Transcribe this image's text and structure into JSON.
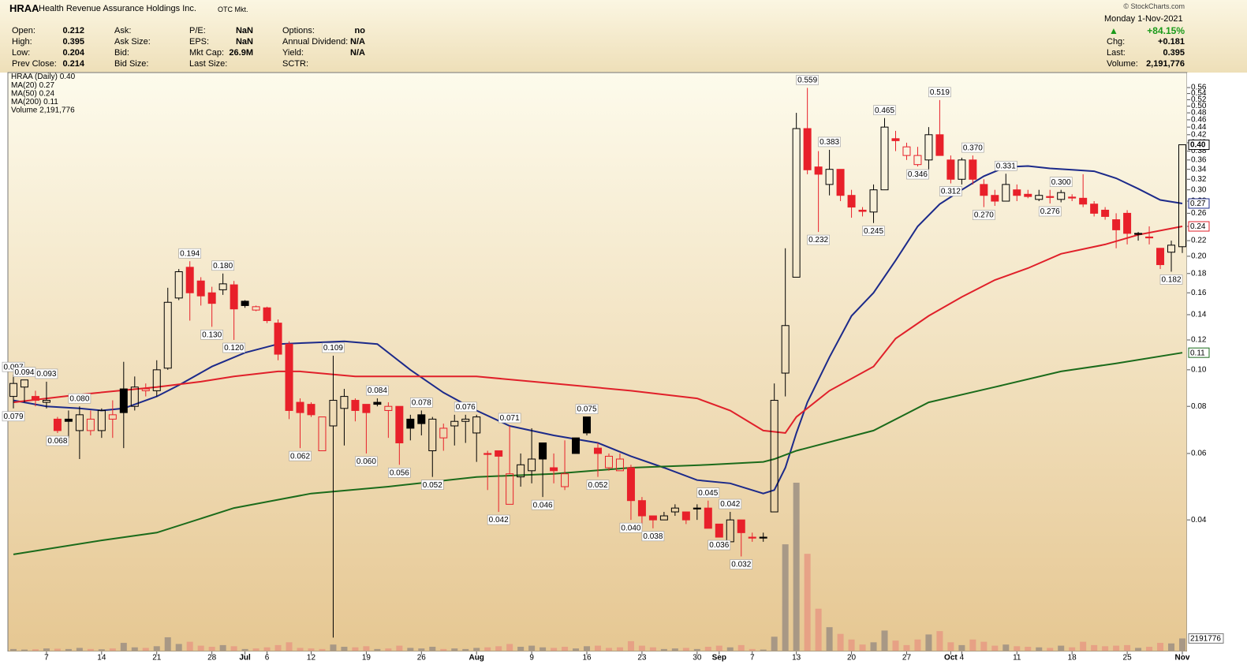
{
  "header": {
    "symbol": "HRAA",
    "company": "Health Revenue Assurance Holdings Inc.",
    "exchange": "OTC Mkt.",
    "copyright": "© StockCharts.com",
    "columns": [
      [
        [
          "Open:",
          "0.212"
        ],
        [
          "High:",
          "0.395"
        ],
        [
          "Low:",
          "0.204"
        ],
        [
          "Prev Close:",
          "0.214"
        ]
      ],
      [
        [
          "Ask:"
        ],
        [
          "Ask Size:"
        ],
        [
          "Bid:"
        ],
        [
          "Bid Size:"
        ]
      ],
      [
        [
          "P/E:",
          "NaN"
        ],
        [
          "EPS:",
          "NaN"
        ],
        [
          "Mkt Cap:",
          "26.9M"
        ],
        [
          "Last Size:"
        ]
      ],
      [
        [
          "Options:",
          "no"
        ],
        [
          "Annual Dividend:",
          "N/A"
        ],
        [
          "Yield:",
          "N/A"
        ],
        [
          "SCTR:"
        ]
      ]
    ],
    "date": "Monday  1-Nov-2021",
    "change_pct": "+84.15%",
    "right_rows": [
      [
        "Chg:",
        "+0.181"
      ],
      [
        "Last:",
        "0.395"
      ],
      [
        "Volume:",
        "2,191,776"
      ]
    ]
  },
  "chart_data": {
    "type": "candlestick",
    "price_legend": "HRAA (Daily)",
    "price_last": "0.40",
    "price_color": "#000000",
    "down_color": "#e8202a",
    "volume_legend": "Volume",
    "volume_last": "2,191,776",
    "ylim": [
      0.018,
      0.605
    ],
    "log_scale": true,
    "yticks": [
      0.04,
      0.06,
      0.08,
      {
        "value": 0.1,
        "label": "0.10"
      },
      0.12,
      0.14,
      0.16,
      0.18,
      {
        "value": 0.2,
        "label": "0.20"
      },
      0.22,
      0.24,
      0.26,
      0.28,
      {
        "value": 0.3,
        "label": "0.30"
      },
      0.32,
      0.34,
      0.36,
      0.38,
      {
        "value": 0.4,
        "label": "0.40"
      },
      0.42,
      0.44,
      0.46,
      0.48,
      {
        "value": 0.5,
        "label": "0.50"
      },
      0.52,
      0.54,
      0.56
    ],
    "volume_ylim": [
      0,
      30000000
    ],
    "categories": [
      null,
      null,
      null,
      "7",
      null,
      null,
      null,
      null,
      "14",
      null,
      null,
      null,
      null,
      "21",
      null,
      null,
      null,
      null,
      "28",
      null,
      null,
      "Jul",
      null,
      "6",
      null,
      null,
      null,
      "12",
      null,
      null,
      null,
      null,
      "19",
      null,
      null,
      null,
      null,
      "26",
      null,
      null,
      null,
      null,
      "Aug",
      null,
      null,
      null,
      null,
      "9",
      null,
      null,
      null,
      null,
      "16",
      null,
      null,
      null,
      null,
      "23",
      null,
      null,
      null,
      null,
      "30",
      null,
      "Sep",
      null,
      null,
      "7",
      null,
      null,
      null,
      "13",
      null,
      null,
      null,
      null,
      "20",
      null,
      null,
      null,
      null,
      "27",
      null,
      null,
      null,
      "Oct",
      "4",
      null,
      null,
      null,
      null,
      "11",
      null,
      null,
      null,
      null,
      "18",
      null,
      null,
      null,
      null,
      "25",
      null,
      null,
      null,
      null,
      "Nov"
    ],
    "open": [
      0.085,
      0.09,
      0.085,
      0.082,
      0.074,
      0.074,
      0.069,
      0.069,
      0.069,
      0.074,
      0.089,
      0.08,
      0.088,
      0.088,
      0.101,
      0.155,
      0.187,
      0.172,
      0.16,
      0.163,
      0.168,
      0.152,
      0.144,
      0.146,
      0.133,
      0.117,
      0.082,
      0.081,
      0.061,
      0.071,
      0.079,
      0.083,
      0.081,
      0.082,
      0.078,
      0.08,
      0.074,
      0.076,
      0.061,
      0.066,
      0.071,
      0.073,
      0.068,
      0.06,
      0.061,
      0.044,
      0.052,
      0.054,
      0.064,
      0.055,
      0.049,
      0.066,
      0.075,
      0.062,
      0.055,
      0.054,
      0.055,
      0.045,
      0.041,
      0.04,
      0.042,
      0.042,
      0.043,
      0.043,
      0.039,
      0.035,
      0.04,
      0.036,
      0.036,
      0.042,
      0.098,
      0.176,
      0.436,
      0.345,
      0.31,
      0.34,
      0.29,
      0.265,
      0.262,
      0.3,
      0.41,
      0.37,
      0.35,
      0.36,
      0.42,
      0.36,
      0.32,
      0.36,
      0.31,
      0.29,
      0.28,
      0.3,
      0.292,
      0.283,
      0.288,
      0.283,
      0.287,
      0.285,
      0.275,
      0.265,
      0.25,
      0.26,
      0.23,
      0.225,
      0.21,
      0.205,
      0.212
    ],
    "high": [
      0.097,
      0.094,
      0.088,
      0.093,
      0.075,
      0.078,
      0.08,
      0.078,
      0.079,
      0.083,
      0.105,
      0.096,
      0.092,
      0.106,
      0.165,
      0.185,
      0.194,
      0.176,
      0.166,
      0.18,
      0.172,
      0.153,
      0.148,
      0.147,
      0.136,
      0.119,
      0.084,
      0.082,
      0.075,
      0.109,
      0.089,
      0.084,
      0.081,
      0.084,
      0.082,
      0.08,
      0.076,
      0.078,
      0.075,
      0.072,
      0.076,
      0.076,
      0.076,
      0.061,
      0.061,
      0.071,
      0.06,
      0.07,
      0.064,
      0.06,
      0.065,
      0.066,
      0.075,
      0.064,
      0.06,
      0.06,
      0.056,
      0.046,
      0.041,
      0.042,
      0.044,
      0.042,
      0.044,
      0.045,
      0.039,
      0.042,
      0.04,
      0.037,
      0.037,
      0.092,
      0.21,
      0.48,
      0.559,
      0.38,
      0.383,
      0.34,
      0.3,
      0.27,
      0.31,
      0.465,
      0.43,
      0.4,
      0.39,
      0.44,
      0.519,
      0.37,
      0.365,
      0.37,
      0.32,
      0.3,
      0.331,
      0.31,
      0.3,
      0.3,
      0.3,
      0.3,
      0.292,
      0.33,
      0.28,
      0.27,
      0.26,
      0.265,
      0.232,
      0.24,
      0.21,
      0.22,
      0.395
    ],
    "low": [
      0.079,
      0.082,
      0.08,
      0.079,
      0.068,
      0.066,
      0.058,
      0.067,
      0.066,
      0.066,
      0.062,
      0.078,
      0.085,
      0.085,
      0.1,
      0.153,
      0.135,
      0.148,
      0.13,
      0.158,
      0.12,
      0.146,
      0.143,
      0.133,
      0.106,
      0.074,
      0.062,
      0.075,
      0.061,
      0.0195,
      0.063,
      0.073,
      0.06,
      0.08,
      0.066,
      0.056,
      0.065,
      0.067,
      0.052,
      0.061,
      0.063,
      0.064,
      0.057,
      0.048,
      0.042,
      0.044,
      0.049,
      0.05,
      0.046,
      0.05,
      0.048,
      0.06,
      0.067,
      0.052,
      0.054,
      0.054,
      0.04,
      0.039,
      0.038,
      0.04,
      0.041,
      0.039,
      0.04,
      0.038,
      0.036,
      0.035,
      0.032,
      0.035,
      0.035,
      0.042,
      0.085,
      0.176,
      0.33,
      0.232,
      0.29,
      0.28,
      0.253,
      0.255,
      0.245,
      0.3,
      0.38,
      0.36,
      0.346,
      0.34,
      0.37,
      0.312,
      0.31,
      0.31,
      0.27,
      0.272,
      0.28,
      0.28,
      0.285,
      0.28,
      0.276,
      0.278,
      0.28,
      0.27,
      0.255,
      0.25,
      0.21,
      0.215,
      0.22,
      0.215,
      0.185,
      0.182,
      0.204
    ],
    "close": [
      0.092,
      0.094,
      0.083,
      0.083,
      0.069,
      0.073,
      0.076,
      0.074,
      0.078,
      0.076,
      0.077,
      0.09,
      0.089,
      0.1,
      0.151,
      0.182,
      0.16,
      0.157,
      0.15,
      0.169,
      0.145,
      0.148,
      0.147,
      0.135,
      0.11,
      0.078,
      0.077,
      0.076,
      0.075,
      0.083,
      0.085,
      0.078,
      0.077,
      0.081,
      0.08,
      0.064,
      0.07,
      0.072,
      0.074,
      0.07,
      0.073,
      0.074,
      0.075,
      0.06,
      0.059,
      0.053,
      0.056,
      0.058,
      0.058,
      0.054,
      0.053,
      0.06,
      0.068,
      0.06,
      0.059,
      0.058,
      0.045,
      0.041,
      0.04,
      0.041,
      0.043,
      0.04,
      0.043,
      0.038,
      0.036,
      0.04,
      0.037,
      0.036,
      0.036,
      0.083,
      0.131,
      0.436,
      0.339,
      0.33,
      0.34,
      0.29,
      0.27,
      0.263,
      0.3,
      0.44,
      0.405,
      0.39,
      0.37,
      0.42,
      0.37,
      0.32,
      0.36,
      0.32,
      0.29,
      0.28,
      0.31,
      0.29,
      0.288,
      0.29,
      0.288,
      0.295,
      0.287,
      0.275,
      0.26,
      0.255,
      0.235,
      0.23,
      0.23,
      0.224,
      0.19,
      0.214,
      0.395
    ],
    "volume": [
      300000,
      200000,
      250000,
      400000,
      350000,
      300000,
      500000,
      300000,
      250000,
      400000,
      1400000,
      600000,
      500000,
      800000,
      2400000,
      1200000,
      1600000,
      900000,
      700000,
      1000000,
      800000,
      300000,
      400000,
      600000,
      1000000,
      1500000,
      500000,
      400000,
      300000,
      1100000,
      700000,
      600000,
      800000,
      300000,
      400000,
      900000,
      500000,
      400000,
      700000,
      300000,
      400000,
      300000,
      500000,
      600000,
      800000,
      1200000,
      700000,
      900000,
      600000,
      500000,
      700000,
      400000,
      800000,
      900000,
      500000,
      600000,
      1700000,
      900000,
      600000,
      300000,
      400000,
      500000,
      300000,
      700000,
      900000,
      600000,
      1000000,
      300000,
      200000,
      2500000,
      19000000,
      30000000,
      17300000,
      7500000,
      4200000,
      3000000,
      2000000,
      1100000,
      1500000,
      3600000,
      1800000,
      1000000,
      2000000,
      2900000,
      3500000,
      1500000,
      1000000,
      2000000,
      1600000,
      900000,
      1100000,
      800000,
      700000,
      600000,
      500000,
      900000,
      600000,
      1600000,
      1000000,
      800000,
      900000,
      1000000,
      500000,
      700000,
      1400000,
      1300000,
      2191776
    ],
    "ma": [
      {
        "name": "MA(20)",
        "last": "0.27",
        "color": "#1c2a8a",
        "x": [
          0,
          3,
          6,
          8,
          10,
          13,
          15,
          18,
          21,
          24,
          27,
          30,
          33,
          36,
          39,
          42,
          45,
          49,
          53,
          56,
          59,
          62,
          65,
          68,
          69,
          70,
          71,
          72,
          74,
          76,
          78,
          80,
          82,
          84,
          86,
          88,
          90,
          92,
          94,
          96,
          98,
          100,
          102,
          104,
          106
        ],
        "values": [
          0.083,
          0.08,
          0.079,
          0.078,
          0.079,
          0.085,
          0.091,
          0.102,
          0.111,
          0.117,
          0.118,
          0.119,
          0.117,
          0.1,
          0.087,
          0.078,
          0.071,
          0.067,
          0.064,
          0.059,
          0.055,
          0.051,
          0.05,
          0.047,
          0.048,
          0.055,
          0.068,
          0.082,
          0.108,
          0.139,
          0.16,
          0.195,
          0.24,
          0.275,
          0.3,
          0.326,
          0.345,
          0.347,
          0.342,
          0.339,
          0.336,
          0.322,
          0.302,
          0.282,
          0.276
        ]
      },
      {
        "name": "MA(50)",
        "last": "0.24",
        "color": "#e0202a",
        "x": [
          0,
          6,
          13,
          17,
          20,
          24,
          26,
          31,
          36,
          42,
          49,
          56,
          62,
          65,
          68,
          70,
          71,
          74,
          78,
          80,
          83,
          86,
          89,
          92,
          95,
          99,
          102,
          106
        ],
        "values": [
          0.082,
          0.086,
          0.09,
          0.093,
          0.096,
          0.099,
          0.099,
          0.096,
          0.096,
          0.096,
          0.092,
          0.088,
          0.084,
          0.078,
          0.069,
          0.068,
          0.075,
          0.088,
          0.102,
          0.121,
          0.139,
          0.156,
          0.173,
          0.186,
          0.203,
          0.215,
          0.228,
          0.24
        ]
      },
      {
        "name": "MA(200)",
        "last": "0.11",
        "color": "#1b6b1b",
        "x": [
          0,
          8,
          13,
          20,
          27,
          34,
          42,
          49,
          56,
          63,
          68,
          69,
          71,
          78,
          83,
          89,
          95,
          100,
          106
        ],
        "values": [
          0.0324,
          0.0353,
          0.037,
          0.043,
          0.047,
          0.049,
          0.052,
          0.053,
          0.055,
          0.056,
          0.057,
          0.058,
          0.061,
          0.069,
          0.082,
          0.09,
          0.099,
          0.104,
          0.111
        ]
      }
    ],
    "annotations": [
      {
        "index": 0,
        "value": 0.097,
        "label": "0.097"
      },
      {
        "index": 0,
        "value": 0.079,
        "label": "0.079"
      },
      {
        "index": 1,
        "value": 0.094,
        "label": "0.094"
      },
      {
        "index": 3,
        "value": 0.093,
        "label": "0.093"
      },
      {
        "index": 4,
        "value": 0.068,
        "label": "0.068"
      },
      {
        "index": 6,
        "value": 0.08,
        "label": "0.080"
      },
      {
        "index": 16,
        "value": 0.194,
        "label": "0.194"
      },
      {
        "index": 18,
        "value": 0.13,
        "label": "0.130"
      },
      {
        "index": 19,
        "value": 0.18,
        "label": "0.180"
      },
      {
        "index": 20,
        "value": 0.12,
        "label": "0.120"
      },
      {
        "index": 26,
        "value": 0.062,
        "label": "0.062"
      },
      {
        "index": 29,
        "value": 0.109,
        "label": "0.109"
      },
      {
        "index": 32,
        "value": 0.06,
        "label": "0.060"
      },
      {
        "index": 33,
        "value": 0.084,
        "label": "0.084"
      },
      {
        "index": 35,
        "value": 0.056,
        "label": "0.056"
      },
      {
        "index": 37,
        "value": 0.078,
        "label": "0.078"
      },
      {
        "index": 38,
        "value": 0.052,
        "label": "0.052"
      },
      {
        "index": 41,
        "value": 0.076,
        "label": "0.076"
      },
      {
        "index": 44,
        "value": 0.042,
        "label": "0.042"
      },
      {
        "index": 45,
        "value": 0.071,
        "label": "0.071"
      },
      {
        "index": 48,
        "value": 0.046,
        "label": "0.046"
      },
      {
        "index": 52,
        "value": 0.075,
        "label": "0.075"
      },
      {
        "index": 53,
        "value": 0.052,
        "label": "0.052"
      },
      {
        "index": 56,
        "value": 0.04,
        "label": "0.040"
      },
      {
        "index": 58,
        "value": 0.038,
        "label": "0.038"
      },
      {
        "index": 63,
        "value": 0.045,
        "label": "0.045"
      },
      {
        "index": 64,
        "value": 0.036,
        "label": "0.036"
      },
      {
        "index": 65,
        "value": 0.042,
        "label": "0.042"
      },
      {
        "index": 66,
        "value": 0.032,
        "label": "0.032"
      },
      {
        "index": 72,
        "value": 0.559,
        "label": "0.559"
      },
      {
        "index": 73,
        "value": 0.232,
        "label": "0.232"
      },
      {
        "index": 74,
        "value": 0.383,
        "label": "0.383"
      },
      {
        "index": 78,
        "value": 0.245,
        "label": "0.245"
      },
      {
        "index": 79,
        "value": 0.465,
        "label": "0.465"
      },
      {
        "index": 82,
        "value": 0.346,
        "label": "0.346"
      },
      {
        "index": 84,
        "value": 0.519,
        "label": "0.519"
      },
      {
        "index": 85,
        "value": 0.312,
        "label": "0.312"
      },
      {
        "index": 87,
        "value": 0.37,
        "label": "0.370"
      },
      {
        "index": 88,
        "value": 0.27,
        "label": "0.270"
      },
      {
        "index": 90,
        "value": 0.331,
        "label": "0.331"
      },
      {
        "index": 94,
        "value": 0.276,
        "label": "0.276"
      },
      {
        "index": 95,
        "value": 0.3,
        "label": "0.300"
      },
      {
        "index": 105,
        "value": 0.182,
        "label": "0.182"
      }
    ]
  }
}
